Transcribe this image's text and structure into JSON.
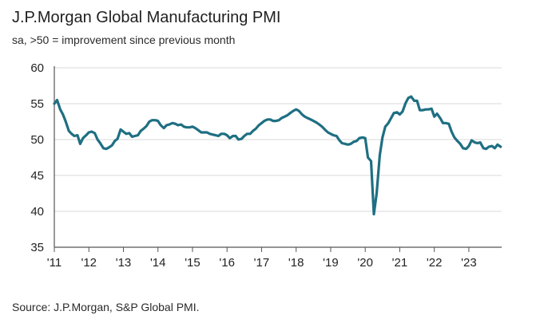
{
  "header": {
    "title": "J.P.Morgan Global Manufacturing PMI",
    "subtitle": "sa, >50 = improvement since previous month"
  },
  "footer": {
    "source": "Source: J.P.Morgan, S&P Global PMI."
  },
  "colors": {
    "line": "#1f6f82",
    "grid": "#d9d9d9",
    "axis": "#555555"
  },
  "chart_data": {
    "type": "line",
    "title": "J.P.Morgan Global Manufacturing PMI",
    "subtitle": "sa, >50 = improvement since previous month",
    "xlabel": "",
    "ylabel": "",
    "ylim": [
      35,
      60
    ],
    "xlim": [
      2011.0,
      2023.95
    ],
    "yticks": [
      35,
      40,
      45,
      50,
      55,
      60
    ],
    "ytick_labels": [
      "35",
      "40",
      "45",
      "50",
      "55",
      "60"
    ],
    "xticks": [
      2011,
      2012,
      2013,
      2014,
      2015,
      2016,
      2017,
      2018,
      2019,
      2020,
      2021,
      2022,
      2023
    ],
    "xtick_labels": [
      "'11",
      "'12",
      "'13",
      "'14",
      "'15",
      "'16",
      "'17",
      "'18",
      "'19",
      "'20",
      "'21",
      "'22",
      "'23"
    ],
    "grid": true,
    "legend": "none",
    "series": [
      {
        "name": "Global Manufacturing PMI",
        "x": [
          2011.0,
          2011.08,
          2011.17,
          2011.25,
          2011.33,
          2011.42,
          2011.5,
          2011.58,
          2011.67,
          2011.75,
          2011.83,
          2011.92,
          2012.0,
          2012.08,
          2012.17,
          2012.25,
          2012.33,
          2012.42,
          2012.5,
          2012.58,
          2012.67,
          2012.75,
          2012.83,
          2012.92,
          2013.0,
          2013.08,
          2013.17,
          2013.25,
          2013.33,
          2013.42,
          2013.5,
          2013.58,
          2013.67,
          2013.75,
          2013.83,
          2013.92,
          2014.0,
          2014.08,
          2014.17,
          2014.25,
          2014.33,
          2014.42,
          2014.5,
          2014.58,
          2014.67,
          2014.75,
          2014.83,
          2014.92,
          2015.0,
          2015.08,
          2015.17,
          2015.25,
          2015.33,
          2015.42,
          2015.5,
          2015.58,
          2015.67,
          2015.75,
          2015.83,
          2015.92,
          2016.0,
          2016.08,
          2016.17,
          2016.25,
          2016.33,
          2016.42,
          2016.5,
          2016.58,
          2016.67,
          2016.75,
          2016.83,
          2016.92,
          2017.0,
          2017.08,
          2017.17,
          2017.25,
          2017.33,
          2017.42,
          2017.5,
          2017.58,
          2017.67,
          2017.75,
          2017.83,
          2017.92,
          2018.0,
          2018.08,
          2018.17,
          2018.25,
          2018.33,
          2018.42,
          2018.5,
          2018.58,
          2018.67,
          2018.75,
          2018.83,
          2018.92,
          2019.0,
          2019.08,
          2019.17,
          2019.25,
          2019.33,
          2019.42,
          2019.5,
          2019.58,
          2019.67,
          2019.75,
          2019.83,
          2019.92,
          2020.0,
          2020.08,
          2020.17,
          2020.25,
          2020.33,
          2020.42,
          2020.5,
          2020.58,
          2020.67,
          2020.75,
          2020.83,
          2020.92,
          2021.0,
          2021.08,
          2021.17,
          2021.25,
          2021.33,
          2021.42,
          2021.5,
          2021.58,
          2021.67,
          2021.75,
          2021.83,
          2021.92,
          2022.0,
          2022.08,
          2022.17,
          2022.25,
          2022.33,
          2022.42,
          2022.5,
          2022.58,
          2022.67,
          2022.75,
          2022.83,
          2022.92,
          2023.0,
          2023.08,
          2023.17,
          2023.25,
          2023.33,
          2023.42,
          2023.5,
          2023.58,
          2023.67,
          2023.75,
          2023.83,
          2023.92
        ],
        "values": [
          55.0,
          55.5,
          54.2,
          53.5,
          52.5,
          51.2,
          50.8,
          50.5,
          50.6,
          49.4,
          50.2,
          50.6,
          51.0,
          51.1,
          50.9,
          50.0,
          49.5,
          48.8,
          48.7,
          48.9,
          49.2,
          49.8,
          50.1,
          51.4,
          51.1,
          50.8,
          50.9,
          50.4,
          50.5,
          50.6,
          51.2,
          51.5,
          51.9,
          52.5,
          52.7,
          52.7,
          52.6,
          52.0,
          51.6,
          52.0,
          52.1,
          52.3,
          52.2,
          52.0,
          52.1,
          51.8,
          51.7,
          51.7,
          51.8,
          51.6,
          51.3,
          51.0,
          51.0,
          51.0,
          50.8,
          50.7,
          50.6,
          50.5,
          50.8,
          50.8,
          50.6,
          50.2,
          50.5,
          50.5,
          50.0,
          50.1,
          50.5,
          50.8,
          50.8,
          51.2,
          51.5,
          52.0,
          52.3,
          52.6,
          52.8,
          52.8,
          52.6,
          52.6,
          52.7,
          53.0,
          53.2,
          53.4,
          53.7,
          54.0,
          54.2,
          54.0,
          53.5,
          53.2,
          53.0,
          52.8,
          52.6,
          52.4,
          52.1,
          51.8,
          51.4,
          51.0,
          50.8,
          50.6,
          50.5,
          49.9,
          49.5,
          49.4,
          49.3,
          49.4,
          49.7,
          49.8,
          50.2,
          50.3,
          50.2,
          47.5,
          47.0,
          39.6,
          42.5,
          47.8,
          50.3,
          51.8,
          52.3,
          53.0,
          53.7,
          53.8,
          53.5,
          53.9,
          55.1,
          55.8,
          56.0,
          55.4,
          55.4,
          54.1,
          54.1,
          54.2,
          54.2,
          54.3,
          53.2,
          53.6,
          53.0,
          52.3,
          52.3,
          52.2,
          51.1,
          50.3,
          49.8,
          49.4,
          48.8,
          48.7,
          49.1,
          49.9,
          49.6,
          49.5,
          49.6,
          48.8,
          48.7,
          49.0,
          49.1,
          48.8,
          49.3,
          49.0
        ]
      }
    ]
  }
}
